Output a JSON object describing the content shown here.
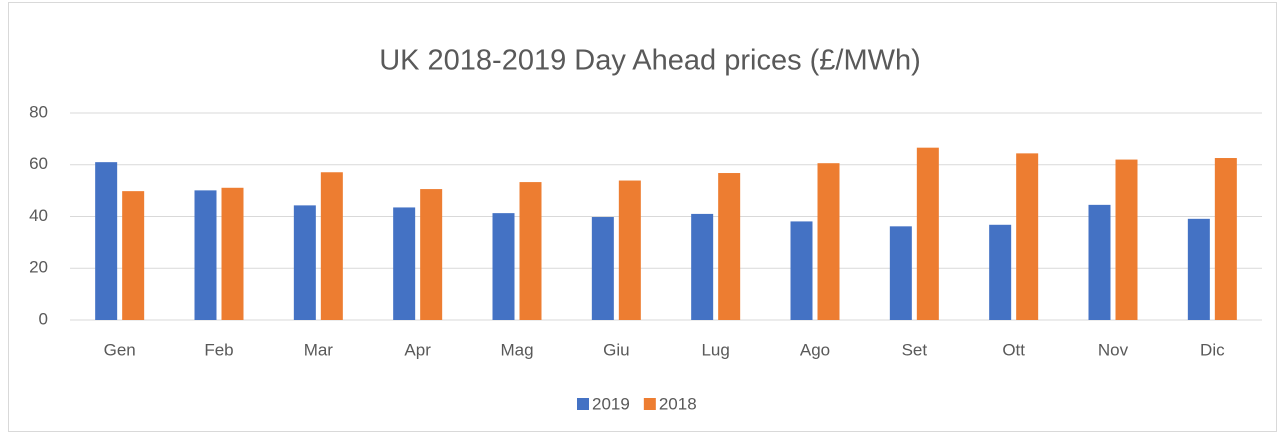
{
  "chart_data": {
    "type": "bar",
    "title": "UK 2018-2019 Day Ahead prices (£/MWh)",
    "categories": [
      "Gen",
      "Feb",
      "Mar",
      "Apr",
      "Mag",
      "Giu",
      "Lug",
      "Ago",
      "Set",
      "Ott",
      "Nov",
      "Dic"
    ],
    "series": [
      {
        "name": "2019",
        "color": "#4472c4",
        "values": [
          61,
          50.1,
          44.3,
          43.5,
          41.3,
          39.8,
          41,
          38.1,
          36.2,
          36.8,
          44.5,
          39.1
        ]
      },
      {
        "name": "2018",
        "color": "#ed7d31",
        "values": [
          49.8,
          51.1,
          57.1,
          50.6,
          53.3,
          53.9,
          56.8,
          60.6,
          66.6,
          64.4,
          62,
          62.6
        ]
      }
    ],
    "ylim": [
      0,
      80
    ],
    "yticks": [
      0,
      20,
      40,
      60,
      80
    ],
    "grid": true,
    "legend": "bottom"
  }
}
